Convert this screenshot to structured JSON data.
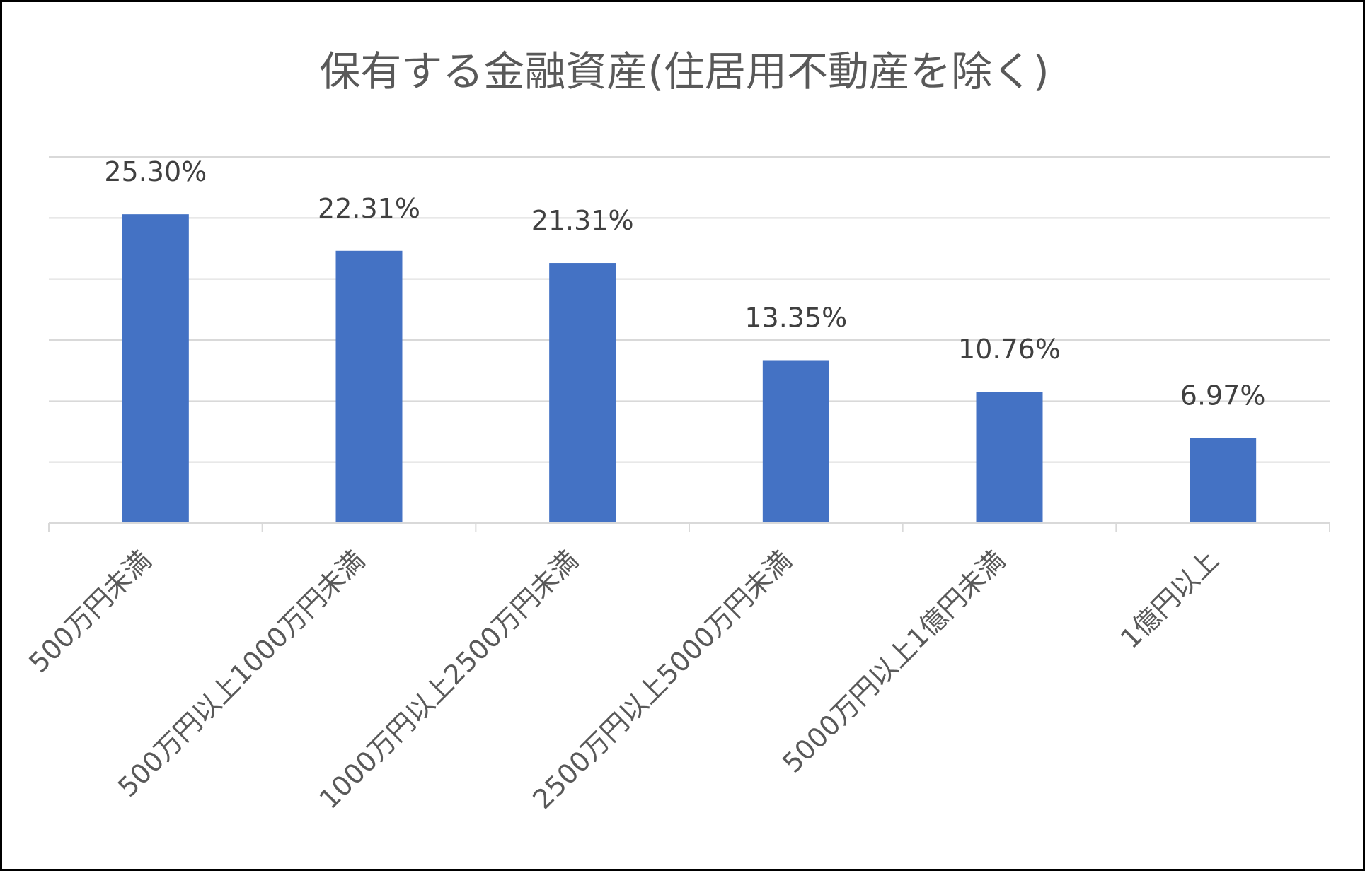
{
  "chart_data": {
    "type": "bar",
    "title": "保有する金融資産(住居用不動産を除く)",
    "xlabel": "",
    "ylabel": "",
    "categories": [
      "500万円未満",
      "500万円以上1000万円未満",
      "1000万円以上2500万円未満",
      "2500万円以上5000万円未満",
      "5000万円以上1億円未満",
      "1億円以上"
    ],
    "values": [
      25.3,
      22.31,
      21.31,
      13.35,
      10.76,
      6.97
    ],
    "data_labels": [
      "25.30%",
      "22.31%",
      "21.31%",
      "13.35%",
      "10.76%",
      "6.97%"
    ],
    "ylim": [
      0,
      30
    ],
    "gridline_step": 5,
    "grid": true,
    "legend": "none",
    "bar_color": "#4472C4",
    "gridline_color": "#D9D9D9",
    "axis_color": "#D9D9D9"
  }
}
